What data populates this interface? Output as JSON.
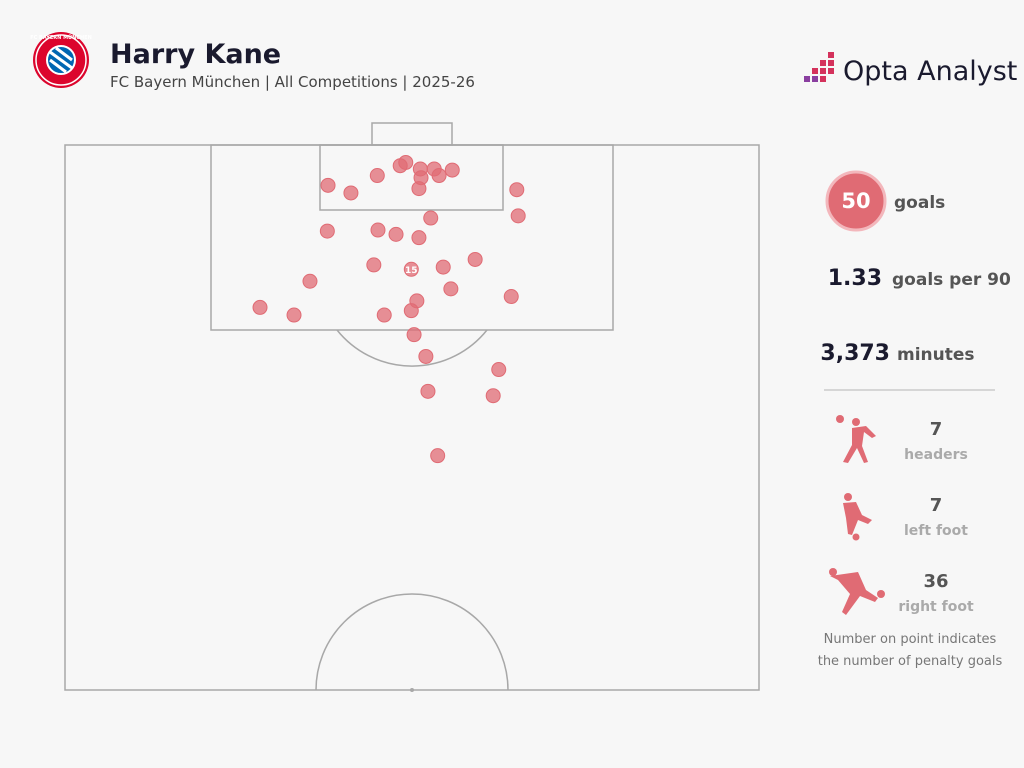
{
  "header": {
    "title": "Harry Kane",
    "subtitle": "FC Bayern München | All Competitions | 2025-26",
    "logo_text": "FC BAYERN MÜNCHEN",
    "brand": "Opta Analyst"
  },
  "chart_data": {
    "type": "scatter",
    "color": "#e06b74",
    "xlim": [
      0,
      100
    ],
    "ylim": [
      0,
      50
    ],
    "x": [
      49.1,
      48.3,
      51.2,
      53.2,
      55.8,
      51.3,
      53.9,
      45.0,
      37.9,
      41.2,
      51.0,
      65.1,
      65.3,
      52.7,
      37.8,
      45.1,
      47.7,
      51.0,
      44.5,
      49.9,
      54.5,
      59.1,
      35.3,
      55.6,
      64.3,
      28.1,
      33.0,
      46.0,
      49.9,
      50.7,
      50.3,
      52.0,
      62.5,
      52.3,
      61.7,
      53.7
    ],
    "y": [
      1.6,
      1.9,
      2.2,
      2.2,
      2.3,
      3.0,
      2.8,
      2.8,
      3.7,
      4.4,
      4.0,
      4.1,
      6.5,
      6.7,
      7.9,
      7.8,
      8.2,
      8.5,
      11.0,
      11.4,
      11.2,
      10.5,
      12.5,
      13.2,
      13.9,
      14.9,
      15.6,
      15.6,
      15.2,
      14.3,
      17.4,
      19.4,
      20.6,
      22.6,
      23.0,
      28.5
    ],
    "point_labels": [
      null,
      null,
      null,
      null,
      null,
      null,
      null,
      null,
      null,
      null,
      null,
      null,
      null,
      null,
      null,
      null,
      null,
      null,
      null,
      15,
      null,
      null,
      null,
      null,
      null,
      null,
      null,
      null,
      null,
      null,
      null,
      null,
      null,
      null,
      null,
      null
    ]
  },
  "stats": {
    "goals": 50,
    "goals_label": "goals",
    "per90": 1.33,
    "per90_label": "goals per 90",
    "minutes": {
      "value": 3373,
      "label": "3,373"
    },
    "minutes_label": "minutes"
  },
  "breakdown": [
    {
      "value": 7,
      "label": "headers"
    },
    {
      "value": 7,
      "label": "left foot"
    },
    {
      "value": 36,
      "label": "right foot"
    }
  ],
  "note": [
    "Number on point indicates",
    "the number of penalty goals"
  ]
}
